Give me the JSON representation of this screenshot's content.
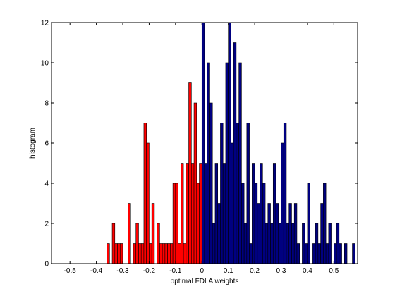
{
  "chart_data": {
    "type": "bar",
    "subtype": "histogram",
    "title": "",
    "xlabel": "optimal FDLA weights",
    "ylabel": "histogram",
    "xlim": [
      -0.57,
      0.59
    ],
    "ylim": [
      0,
      12
    ],
    "xticks": [
      -0.5,
      -0.4,
      -0.3,
      -0.2,
      -0.1,
      0,
      0.1,
      0.2,
      0.3,
      0.4,
      0.5
    ],
    "xtick_labels": [
      "-0.5",
      "-0.4",
      "-0.3",
      "-0.2",
      "-0.1",
      "0",
      "0.1",
      "0.2",
      "0.3",
      "0.4",
      "0.5"
    ],
    "yticks": [
      0,
      2,
      4,
      6,
      8,
      10,
      12
    ],
    "ytick_labels": [
      "0",
      "2",
      "4",
      "6",
      "8",
      "10",
      "12"
    ],
    "grid": false,
    "legend": "none",
    "bin_width": 0.01,
    "colors": {
      "negative": "#ff0000",
      "positive": "#000080",
      "edge": "#000000"
    },
    "series": [
      {
        "color": "#ff0000",
        "bin_centers": [
          -0.355,
          -0.335,
          -0.325,
          -0.315,
          -0.305,
          -0.275,
          -0.255,
          -0.245,
          -0.235,
          -0.225,
          -0.215,
          -0.205,
          -0.195,
          -0.185,
          -0.165,
          -0.155,
          -0.145,
          -0.135,
          -0.125,
          -0.115,
          -0.105,
          -0.095,
          -0.085,
          -0.075,
          -0.065,
          -0.055,
          -0.045,
          -0.035,
          -0.025,
          -0.015,
          -0.005
        ],
        "counts": [
          1,
          2,
          1,
          1,
          1,
          3,
          1,
          2,
          1,
          1,
          7,
          6,
          1,
          3,
          2,
          1,
          1,
          1,
          1,
          1,
          4,
          4,
          1,
          5,
          1,
          5,
          9,
          5,
          8,
          4,
          5
        ]
      },
      {
        "color": "#000080",
        "bin_centers": [
          0.005,
          0.015,
          0.025,
          0.035,
          0.045,
          0.055,
          0.065,
          0.075,
          0.085,
          0.095,
          0.105,
          0.115,
          0.125,
          0.135,
          0.145,
          0.155,
          0.165,
          0.175,
          0.185,
          0.195,
          0.205,
          0.215,
          0.225,
          0.235,
          0.245,
          0.255,
          0.265,
          0.275,
          0.285,
          0.295,
          0.305,
          0.315,
          0.325,
          0.335,
          0.345,
          0.355,
          0.365,
          0.385,
          0.395,
          0.405,
          0.425,
          0.435,
          0.445,
          0.455,
          0.465,
          0.475,
          0.485,
          0.505,
          0.515,
          0.525,
          0.545,
          0.575
        ],
        "counts": [
          12,
          5,
          10,
          8,
          2,
          5,
          3,
          7,
          5,
          10,
          12,
          6,
          11,
          7,
          10,
          4,
          2,
          7,
          1,
          5,
          4,
          3,
          5,
          4,
          2,
          3,
          2,
          5,
          3,
          2,
          6,
          7,
          2,
          3,
          2,
          3,
          1,
          2,
          1,
          4,
          1,
          2,
          1,
          3,
          4,
          1,
          2,
          1,
          2,
          1,
          1,
          1
        ]
      }
    ]
  }
}
